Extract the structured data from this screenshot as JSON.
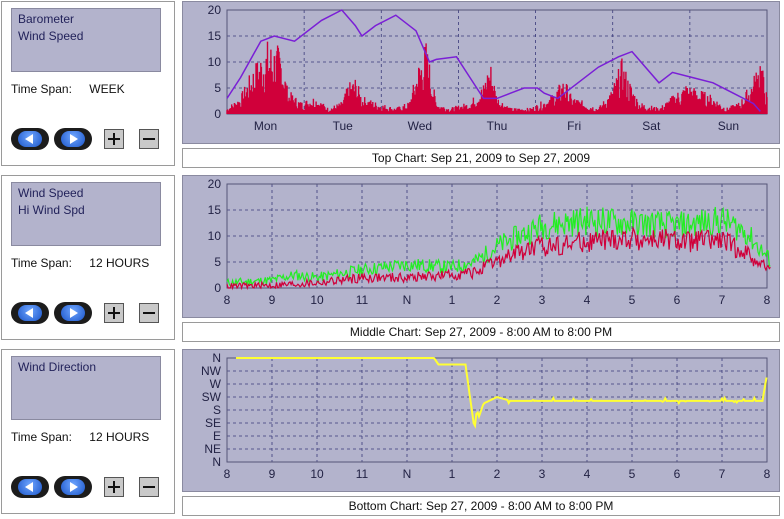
{
  "panels": [
    {
      "id": "top",
      "series_labels": [
        "Barometer",
        "Wind Speed"
      ],
      "time_span_label": "Time Span:",
      "time_span_value": "WEEK",
      "caption": "Top Chart:  Sep 21, 2009  to  Sep 27, 2009",
      "x_ticks": [
        "Mon",
        "Tue",
        "Wed",
        "Thu",
        "Fri",
        "Sat",
        "Sun"
      ],
      "y_ticks": [
        "20",
        "15",
        "10",
        "5",
        "0"
      ]
    },
    {
      "id": "middle",
      "series_labels": [
        "Wind Speed",
        "Hi Wind Spd"
      ],
      "time_span_label": "Time Span:",
      "time_span_value": "12 HOURS",
      "caption": "Middle Chart:  Sep 27, 2009 - 8:00 AM  to  8:00 PM",
      "x_ticks": [
        "8",
        "9",
        "10",
        "11",
        "N",
        "1",
        "2",
        "3",
        "4",
        "5",
        "6",
        "7",
        "8"
      ],
      "y_ticks": [
        "20",
        "15",
        "10",
        "5",
        "0"
      ]
    },
    {
      "id": "bottom",
      "series_labels": [
        "Wind Direction"
      ],
      "time_span_label": "Time Span:",
      "time_span_value": "12 HOURS",
      "caption": "Bottom Chart:  Sep 27, 2009 - 8:00 AM  to  8:00 PM",
      "x_ticks": [
        "8",
        "9",
        "10",
        "11",
        "N",
        "1",
        "2",
        "3",
        "4",
        "5",
        "6",
        "7",
        "8"
      ],
      "y_ticks": [
        "N",
        "NW",
        "W",
        "SW",
        "S",
        "SE",
        "E",
        "NE",
        "N"
      ]
    }
  ],
  "colors": {
    "panel_bg": "#b3b3cc",
    "barometer": "#7a1fd6",
    "wind_speed": "#d0003a",
    "hi_wind": "#22ee22",
    "wind_direction": "#ffff33",
    "grid": "#3a3a7a"
  },
  "buttons": {
    "back_icon": "left-arrow-icon",
    "forward_icon": "right-arrow-icon",
    "zoom_in_icon": "plus-icon",
    "zoom_out_icon": "minus-icon"
  },
  "chart_data": [
    {
      "type": "area",
      "title": "Top Chart",
      "x": [
        "Mon",
        "Tue",
        "Wed",
        "Thu",
        "Fri",
        "Sat",
        "Sun"
      ],
      "ylim": [
        0,
        20
      ],
      "grid": true,
      "series": [
        {
          "name": "Barometer",
          "color": "#7a1fd6",
          "type": "line",
          "points": [
            [
              0,
              3
            ],
            [
              0.2,
              7
            ],
            [
              0.5,
              14
            ],
            [
              0.7,
              15
            ],
            [
              1.0,
              14
            ],
            [
              1.4,
              18
            ],
            [
              1.7,
              20
            ],
            [
              1.9,
              17
            ],
            [
              2.0,
              15
            ],
            [
              2.2,
              17
            ],
            [
              2.5,
              19
            ],
            [
              2.8,
              16
            ],
            [
              3.0,
              10
            ],
            [
              3.1,
              10.5
            ],
            [
              3.4,
              11
            ],
            [
              3.6,
              7
            ],
            [
              3.8,
              3
            ],
            [
              4.0,
              3
            ],
            [
              4.2,
              4
            ],
            [
              4.4,
              5
            ],
            [
              4.6,
              5
            ],
            [
              4.7,
              4
            ],
            [
              4.9,
              3
            ],
            [
              5.2,
              6
            ],
            [
              5.5,
              9
            ],
            [
              5.8,
              11
            ],
            [
              6.0,
              12
            ],
            [
              6.2,
              9
            ],
            [
              6.4,
              6
            ],
            [
              6.6,
              8
            ],
            [
              6.9,
              7
            ],
            [
              7.2,
              6
            ],
            [
              7.5,
              4
            ],
            [
              7.8,
              2
            ],
            [
              7.9,
              0.5
            ]
          ]
        },
        {
          "name": "Wind Speed",
          "color": "#d0003a",
          "type": "area",
          "envelope": [
            [
              0,
              1
            ],
            [
              0.2,
              3
            ],
            [
              0.4,
              8
            ],
            [
              0.6,
              12
            ],
            [
              0.8,
              11
            ],
            [
              0.9,
              4
            ],
            [
              1.1,
              2
            ],
            [
              1.3,
              3
            ],
            [
              1.5,
              1
            ],
            [
              1.7,
              2
            ],
            [
              1.8,
              5
            ],
            [
              1.9,
              6
            ],
            [
              2.0,
              3
            ],
            [
              2.2,
              2
            ],
            [
              2.5,
              1
            ],
            [
              2.7,
              2
            ],
            [
              2.85,
              9
            ],
            [
              2.95,
              12
            ],
            [
              3.1,
              2
            ],
            [
              3.3,
              1
            ],
            [
              3.6,
              2
            ],
            [
              3.8,
              5
            ],
            [
              3.9,
              9
            ],
            [
              4.0,
              3
            ],
            [
              4.2,
              1
            ],
            [
              4.5,
              1
            ],
            [
              4.8,
              3
            ],
            [
              5.0,
              6
            ],
            [
              5.1,
              3
            ],
            [
              5.3,
              2
            ],
            [
              5.5,
              1
            ],
            [
              5.7,
              4
            ],
            [
              5.85,
              9
            ],
            [
              5.95,
              6
            ],
            [
              6.1,
              2
            ],
            [
              6.4,
              1
            ],
            [
              6.6,
              3
            ],
            [
              6.8,
              5
            ],
            [
              7.0,
              4
            ],
            [
              7.2,
              3
            ],
            [
              7.4,
              1
            ],
            [
              7.6,
              2
            ],
            [
              7.8,
              6
            ],
            [
              7.9,
              10
            ],
            [
              8.0,
              3
            ]
          ]
        }
      ]
    },
    {
      "type": "area",
      "title": "Middle Chart",
      "x": [
        "8",
        "9",
        "10",
        "11",
        "N",
        "1",
        "2",
        "3",
        "4",
        "5",
        "6",
        "7",
        "8"
      ],
      "ylim": [
        0,
        20
      ],
      "grid": true,
      "series": [
        {
          "name": "Wind Speed",
          "color": "#d0003a",
          "envelope": [
            [
              0,
              0.3
            ],
            [
              1,
              0.5
            ],
            [
              2,
              1
            ],
            [
              3,
              2
            ],
            [
              4,
              2
            ],
            [
              5,
              2.5
            ],
            [
              5.5,
              3
            ],
            [
              6,
              5
            ],
            [
              6.5,
              7
            ],
            [
              7,
              8
            ],
            [
              8,
              9
            ],
            [
              9,
              9.5
            ],
            [
              10,
              9
            ],
            [
              11,
              9
            ],
            [
              11.5,
              7
            ],
            [
              12,
              4
            ],
            [
              12.1,
              3
            ]
          ]
        },
        {
          "name": "Hi Wind Spd",
          "color": "#22ee22",
          "envelope": [
            [
              0,
              1
            ],
            [
              1,
              1.5
            ],
            [
              1.5,
              2.5
            ],
            [
              2,
              2
            ],
            [
              3,
              3.5
            ],
            [
              4,
              4.5
            ],
            [
              5,
              4
            ],
            [
              5.5,
              5
            ],
            [
              6,
              8
            ],
            [
              6.5,
              10
            ],
            [
              7,
              12
            ],
            [
              8,
              13
            ],
            [
              9,
              12.5
            ],
            [
              10,
              12
            ],
            [
              11,
              13
            ],
            [
              11.5,
              11
            ],
            [
              12,
              6
            ],
            [
              12.1,
              5
            ]
          ]
        }
      ]
    },
    {
      "type": "line",
      "title": "Bottom Chart",
      "x": [
        "8",
        "9",
        "10",
        "11",
        "N",
        "1",
        "2",
        "3",
        "4",
        "5",
        "6",
        "7",
        "8"
      ],
      "y_categories": [
        "N",
        "NW",
        "W",
        "SW",
        "S",
        "SE",
        "E",
        "NE",
        "N"
      ],
      "grid": true,
      "series": [
        {
          "name": "Wind Direction",
          "color": "#ffff33",
          "points": [
            [
              0.2,
              0
            ],
            [
              1,
              0
            ],
            [
              2,
              0
            ],
            [
              3,
              0
            ],
            [
              4,
              0
            ],
            [
              4.6,
              0
            ],
            [
              4.7,
              0.5
            ],
            [
              5.3,
              0.5
            ],
            [
              5.4,
              3
            ],
            [
              5.5,
              5.5
            ],
            [
              5.55,
              4
            ],
            [
              5.6,
              4.5
            ],
            [
              5.7,
              3.5
            ],
            [
              6,
              3
            ],
            [
              6.3,
              3.3
            ],
            [
              7,
              3.3
            ],
            [
              8,
              3.3
            ],
            [
              9,
              3.3
            ],
            [
              10,
              3.3
            ],
            [
              11,
              3.3
            ],
            [
              11.5,
              3.3
            ],
            [
              11.9,
              3.3
            ],
            [
              12,
              1.3
            ]
          ]
        }
      ]
    }
  ]
}
